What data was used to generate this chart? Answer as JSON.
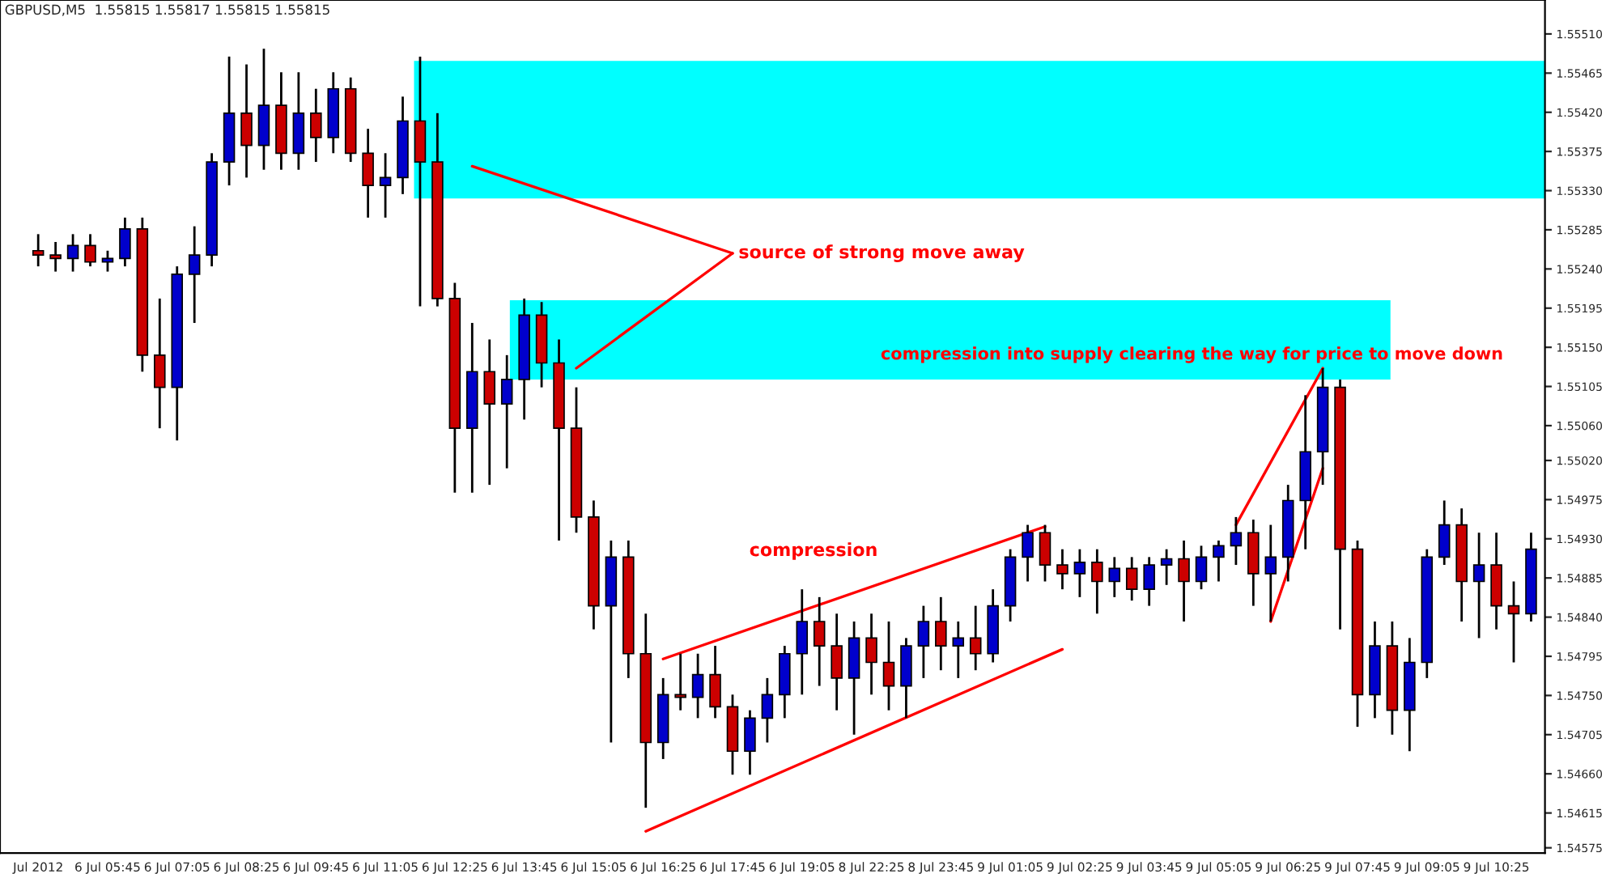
{
  "chart_data": {
    "type": "candlestick",
    "title": "GBPUSD,M5  1.55815 1.55817 1.55815 1.55815",
    "categories": [
      "Jul 2012",
      null,
      null,
      null,
      "6 Jul 05:45",
      null,
      null,
      null,
      "6 Jul 07:05",
      null,
      null,
      null,
      "6 Jul 08:25",
      null,
      null,
      null,
      "6 Jul 09:45",
      null,
      null,
      null,
      "6 Jul 11:05",
      null,
      null,
      null,
      "6 Jul 12:25",
      null,
      null,
      null,
      "6 Jul 13:45",
      null,
      null,
      null,
      "6 Jul 15:05",
      null,
      null,
      null,
      "6 Jul 16:25",
      null,
      null,
      null,
      "6 Jul 17:45",
      null,
      null,
      null,
      "6 Jul 19:05",
      null,
      null,
      null,
      "8 Jul 22:25",
      null,
      null,
      null,
      "8 Jul 23:45",
      null,
      null,
      null,
      "9 Jul 01:05",
      null,
      null,
      null,
      "9 Jul 02:25",
      null,
      null,
      null,
      "9 Jul 03:45",
      null,
      null,
      null,
      "9 Jul 05:05",
      null,
      null,
      null,
      "9 Jul 06:25",
      null,
      null,
      null,
      "9 Jul 07:45",
      null,
      null,
      null,
      "9 Jul 09:05",
      null,
      null,
      null,
      "9 Jul 10:25",
      null,
      null
    ],
    "ohlc": [
      [
        1.55261,
        1.5528,
        1.55243,
        1.55256
      ],
      [
        1.55256,
        1.55271,
        1.55237,
        1.55252
      ],
      [
        1.55252,
        1.5528,
        1.55237,
        1.55267
      ],
      [
        1.55267,
        1.5528,
        1.55243,
        1.55248
      ],
      [
        1.55248,
        1.55261,
        1.55237,
        1.55252
      ],
      [
        1.55252,
        1.55299,
        1.55243,
        1.55286
      ],
      [
        1.55286,
        1.55299,
        1.55122,
        1.55141
      ],
      [
        1.55141,
        1.55206,
        1.55057,
        1.55104
      ],
      [
        1.55104,
        1.55243,
        1.55043,
        1.55234
      ],
      [
        1.55234,
        1.55289,
        1.55178,
        1.55256
      ],
      [
        1.55256,
        1.55373,
        1.55243,
        1.55363
      ],
      [
        1.55363,
        1.55484,
        1.55336,
        1.55419
      ],
      [
        1.55419,
        1.55475,
        1.55345,
        1.55382
      ],
      [
        1.55382,
        1.55493,
        1.55354,
        1.55428
      ],
      [
        1.55428,
        1.55466,
        1.55354,
        1.55373
      ],
      [
        1.55373,
        1.55466,
        1.55354,
        1.55419
      ],
      [
        1.55419,
        1.55447,
        1.55363,
        1.55391
      ],
      [
        1.55391,
        1.55466,
        1.55373,
        1.55447
      ],
      [
        1.55447,
        1.5546,
        1.55363,
        1.55373
      ],
      [
        1.55373,
        1.55401,
        1.55299,
        1.55336
      ],
      [
        1.55336,
        1.55373,
        1.55299,
        1.55345
      ],
      [
        1.55345,
        1.55438,
        1.55326,
        1.5541
      ],
      [
        1.5541,
        1.55484,
        1.55197,
        1.55363
      ],
      [
        1.55363,
        1.55419,
        1.55197,
        1.55206
      ],
      [
        1.55206,
        1.55224,
        1.54983,
        1.55057
      ],
      [
        1.55057,
        1.55178,
        1.54983,
        1.55122
      ],
      [
        1.55122,
        1.55159,
        1.54992,
        1.55085
      ],
      [
        1.55085,
        1.55141,
        1.55011,
        1.55113
      ],
      [
        1.55113,
        1.55206,
        1.55067,
        1.55187
      ],
      [
        1.55187,
        1.55202,
        1.55104,
        1.55132
      ],
      [
        1.55132,
        1.55159,
        1.54928,
        1.55057
      ],
      [
        1.55057,
        1.55104,
        1.54937,
        1.54955
      ],
      [
        1.54955,
        1.54974,
        1.54826,
        1.54853
      ],
      [
        1.54853,
        1.54928,
        1.54696,
        1.54909
      ],
      [
        1.54909,
        1.54928,
        1.5477,
        1.54798
      ],
      [
        1.54798,
        1.54844,
        1.54621,
        1.54696
      ],
      [
        1.54696,
        1.5477,
        1.54677,
        1.54751
      ],
      [
        1.54751,
        1.54798,
        1.54733,
        1.54748
      ],
      [
        1.54748,
        1.54798,
        1.54724,
        1.54774
      ],
      [
        1.54774,
        1.54807,
        1.54724,
        1.54737
      ],
      [
        1.54737,
        1.54751,
        1.54659,
        1.54686
      ],
      [
        1.54686,
        1.54733,
        1.54659,
        1.54724
      ],
      [
        1.54724,
        1.5477,
        1.54696,
        1.54751
      ],
      [
        1.54751,
        1.54807,
        1.54724,
        1.54798
      ],
      [
        1.54798,
        1.54872,
        1.54751,
        1.54835
      ],
      [
        1.54835,
        1.54863,
        1.54761,
        1.54807
      ],
      [
        1.54807,
        1.54844,
        1.54733,
        1.5477
      ],
      [
        1.5477,
        1.54835,
        1.54705,
        1.54816
      ],
      [
        1.54816,
        1.54844,
        1.54751,
        1.54788
      ],
      [
        1.54788,
        1.54835,
        1.54733,
        1.54761
      ],
      [
        1.54761,
        1.54816,
        1.54724,
        1.54807
      ],
      [
        1.54807,
        1.54853,
        1.5477,
        1.54835
      ],
      [
        1.54835,
        1.54863,
        1.54779,
        1.54807
      ],
      [
        1.54807,
        1.54835,
        1.5477,
        1.54816
      ],
      [
        1.54816,
        1.54853,
        1.54779,
        1.54798
      ],
      [
        1.54798,
        1.54872,
        1.54788,
        1.54853
      ],
      [
        1.54853,
        1.54918,
        1.54835,
        1.54909
      ],
      [
        1.54909,
        1.54946,
        1.54881,
        1.54937
      ],
      [
        1.54937,
        1.54946,
        1.54881,
        1.549
      ],
      [
        1.549,
        1.54918,
        1.54872,
        1.5489
      ],
      [
        1.5489,
        1.54918,
        1.54863,
        1.54903
      ],
      [
        1.54903,
        1.54918,
        1.54844,
        1.54881
      ],
      [
        1.54881,
        1.54909,
        1.54863,
        1.54896
      ],
      [
        1.54896,
        1.54909,
        1.54859,
        1.54872
      ],
      [
        1.54872,
        1.54909,
        1.54853,
        1.549
      ],
      [
        1.549,
        1.54918,
        1.54877,
        1.54907
      ],
      [
        1.54907,
        1.54928,
        1.54835,
        1.54881
      ],
      [
        1.54881,
        1.54922,
        1.54872,
        1.54909
      ],
      [
        1.54909,
        1.54928,
        1.54881,
        1.54922
      ],
      [
        1.54922,
        1.54955,
        1.549,
        1.54937
      ],
      [
        1.54937,
        1.54952,
        1.54853,
        1.5489
      ],
      [
        1.5489,
        1.54946,
        1.54835,
        1.54909
      ],
      [
        1.54909,
        1.54992,
        1.54881,
        1.54974
      ],
      [
        1.54974,
        1.55095,
        1.54918,
        1.5503
      ],
      [
        1.5503,
        1.55126,
        1.54992,
        1.55104
      ],
      [
        1.55104,
        1.55113,
        1.54826,
        1.54918
      ],
      [
        1.54918,
        1.54928,
        1.54714,
        1.54751
      ],
      [
        1.54751,
        1.54835,
        1.54724,
        1.54807
      ],
      [
        1.54807,
        1.54835,
        1.54705,
        1.54733
      ],
      [
        1.54733,
        1.54816,
        1.54686,
        1.54788
      ],
      [
        1.54788,
        1.54918,
        1.5477,
        1.54909
      ],
      [
        1.54909,
        1.54974,
        1.549,
        1.54946
      ],
      [
        1.54946,
        1.54965,
        1.54835,
        1.54881
      ],
      [
        1.54881,
        1.54937,
        1.54816,
        1.549
      ],
      [
        1.549,
        1.54937,
        1.54826,
        1.54853
      ],
      [
        1.54853,
        1.54881,
        1.54788,
        1.54844
      ],
      [
        1.54844,
        1.54937,
        1.54835,
        1.54918
      ]
    ],
    "ylim": [
      1.54569,
      1.55549
    ],
    "yticks": [
      {
        "value": 1.5551,
        "label": "1.55510"
      },
      1.55465,
      {
        "value": 1.5542,
        "label": "1.55420"
      },
      1.55375,
      {
        "value": 1.5533,
        "label": "1.55330"
      },
      1.55285,
      {
        "value": 1.5524,
        "label": "1.55240"
      },
      1.55195,
      {
        "value": 1.5515,
        "label": "1.55150"
      },
      1.55105,
      {
        "value": 1.5506,
        "label": "1.55060"
      },
      {
        "value": 1.5502,
        "label": "1.55020"
      },
      1.54975,
      {
        "value": 1.5493,
        "label": "1.54930"
      },
      1.54885,
      {
        "value": 1.5484,
        "label": "1.54840"
      },
      1.54795,
      {
        "value": 1.5475,
        "label": "1.54750"
      },
      1.54705,
      {
        "value": 1.5466,
        "label": "1.54660"
      },
      1.54615,
      1.54575
    ],
    "grid": false,
    "legend": false,
    "bands": [
      {
        "axis": "y",
        "from": 1.55321,
        "to": 1.55479,
        "color": "#00ffff"
      },
      {
        "axis": "y",
        "from": 1.55113,
        "to": 1.55204,
        "color": "#00ffff"
      }
    ],
    "series": [
      {
        "type": "line",
        "color": "#ff0000",
        "values": [
          null,
          null,
          null,
          null,
          null,
          null,
          null,
          null,
          null,
          null,
          null,
          null,
          null,
          null,
          null,
          null,
          null,
          null,
          null,
          null,
          null,
          null,
          null,
          null,
          null,
          1.55358,
          null,
          null,
          null,
          null,
          null,
          null,
          null,
          null,
          null,
          null,
          null,
          null,
          null,
          null,
          1.55258,
          null,
          null,
          null,
          null,
          null,
          null,
          null,
          null,
          null,
          null,
          null,
          null,
          null,
          null,
          null,
          null,
          null,
          null,
          null,
          null,
          null,
          null,
          null,
          null,
          null,
          null,
          null,
          null,
          null,
          null,
          null,
          null,
          null,
          null,
          null,
          null,
          null,
          null,
          null,
          null,
          null,
          null,
          null,
          null,
          null,
          null
        ]
      },
      {
        "type": "line",
        "color": "#ff0000",
        "values": [
          null,
          null,
          null,
          null,
          null,
          null,
          null,
          null,
          null,
          null,
          null,
          null,
          null,
          null,
          null,
          null,
          null,
          null,
          null,
          null,
          null,
          null,
          null,
          null,
          null,
          null,
          null,
          null,
          null,
          null,
          null,
          1.55126,
          null,
          null,
          null,
          null,
          null,
          null,
          null,
          null,
          1.55258,
          null,
          null,
          null,
          null,
          null,
          null,
          null,
          null,
          null,
          null,
          null,
          null,
          null,
          null,
          null,
          null,
          null,
          null,
          null,
          null,
          null,
          null,
          null,
          null,
          null,
          null,
          null,
          null,
          null,
          null,
          null,
          null,
          null,
          null,
          null,
          null,
          null,
          null,
          null,
          null,
          null,
          null,
          null,
          null,
          null,
          null
        ]
      },
      {
        "type": "line",
        "color": "#ff0000",
        "values": [
          null,
          null,
          null,
          null,
          null,
          null,
          null,
          null,
          null,
          null,
          null,
          null,
          null,
          null,
          null,
          null,
          null,
          null,
          null,
          null,
          null,
          null,
          null,
          null,
          null,
          null,
          null,
          null,
          null,
          null,
          null,
          null,
          null,
          null,
          null,
          1.54594,
          null,
          null,
          null,
          null,
          null,
          null,
          null,
          null,
          null,
          null,
          null,
          null,
          null,
          null,
          null,
          null,
          null,
          null,
          null,
          null,
          null,
          null,
          null,
          1.54803,
          null,
          null,
          null,
          null,
          null,
          null,
          null,
          null,
          null,
          null,
          null,
          null,
          null,
          null,
          null,
          null,
          null,
          null,
          null,
          null,
          null,
          null,
          null,
          null,
          null,
          null,
          null
        ]
      },
      {
        "type": "line",
        "color": "#ff0000",
        "values": [
          null,
          null,
          null,
          null,
          null,
          null,
          null,
          null,
          null,
          null,
          null,
          null,
          null,
          null,
          null,
          null,
          null,
          null,
          null,
          null,
          null,
          null,
          null,
          null,
          null,
          null,
          null,
          null,
          null,
          null,
          null,
          null,
          null,
          null,
          null,
          null,
          1.54792,
          null,
          null,
          null,
          null,
          null,
          null,
          null,
          null,
          null,
          null,
          null,
          null,
          null,
          null,
          null,
          null,
          null,
          null,
          null,
          null,
          null,
          1.54944,
          null,
          null,
          null,
          null,
          null,
          null,
          null,
          null,
          null,
          null,
          null,
          null,
          null,
          null,
          null,
          null,
          null,
          null,
          null,
          null,
          null,
          null,
          null,
          null,
          null,
          null,
          null,
          null
        ]
      },
      {
        "type": "line",
        "color": "#ff0000",
        "values": [
          null,
          null,
          null,
          null,
          null,
          null,
          null,
          null,
          null,
          null,
          null,
          null,
          null,
          null,
          null,
          null,
          null,
          null,
          null,
          null,
          null,
          null,
          null,
          null,
          null,
          null,
          null,
          null,
          null,
          null,
          null,
          null,
          null,
          null,
          null,
          null,
          null,
          null,
          null,
          null,
          null,
          null,
          null,
          null,
          null,
          null,
          null,
          null,
          null,
          null,
          null,
          null,
          null,
          null,
          null,
          null,
          null,
          null,
          null,
          null,
          null,
          null,
          null,
          null,
          null,
          null,
          null,
          null,
          null,
          1.54946,
          null,
          null,
          null,
          null,
          1.55126,
          null,
          null,
          null,
          null,
          null,
          null,
          null,
          null,
          null,
          null,
          null,
          null
        ]
      },
      {
        "type": "line",
        "color": "#ff0000",
        "values": [
          null,
          null,
          null,
          null,
          null,
          null,
          null,
          null,
          null,
          null,
          null,
          null,
          null,
          null,
          null,
          null,
          null,
          null,
          null,
          null,
          null,
          null,
          null,
          null,
          null,
          null,
          null,
          null,
          null,
          null,
          null,
          null,
          null,
          null,
          null,
          null,
          null,
          null,
          null,
          null,
          null,
          null,
          null,
          null,
          null,
          null,
          null,
          null,
          null,
          null,
          null,
          null,
          null,
          null,
          null,
          null,
          null,
          null,
          null,
          null,
          null,
          null,
          null,
          null,
          null,
          null,
          null,
          null,
          null,
          null,
          null,
          1.54835,
          null,
          null,
          1.55011,
          null,
          null,
          null,
          null,
          null,
          null,
          null,
          null,
          null,
          null,
          null,
          null
        ]
      }
    ],
    "annotations": [
      "source of strong move away",
      "compression",
      "compression into supply clearing the way for price to move down"
    ]
  }
}
